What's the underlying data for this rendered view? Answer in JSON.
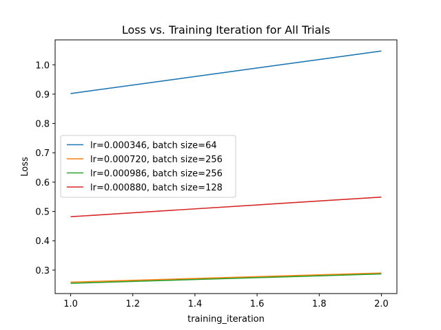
{
  "chart_data": {
    "type": "line",
    "title": "Loss vs. Training Iteration for All Trials",
    "xlabel": "training_iteration",
    "ylabel": "Loss",
    "xlim": [
      0.95,
      2.05
    ],
    "ylim": [
      0.22,
      1.085
    ],
    "xticks": [
      1.0,
      1.2,
      1.4,
      1.6,
      1.8,
      2.0
    ],
    "xtick_labels": [
      "1.0",
      "1.2",
      "1.4",
      "1.6",
      "1.8",
      "2.0"
    ],
    "yticks": [
      0.3,
      0.4,
      0.5,
      0.6,
      0.7,
      0.8,
      0.9,
      1.0
    ],
    "ytick_labels": [
      "0.3",
      "0.4",
      "0.5",
      "0.6",
      "0.7",
      "0.8",
      "0.9",
      "1.0"
    ],
    "grid": false,
    "legend_position": "center-left",
    "x": [
      1.0,
      2.0
    ],
    "series": [
      {
        "name": "lr=0.000346, batch size=64",
        "color": "#1f77b4",
        "values": [
          0.902,
          1.047
        ]
      },
      {
        "name": "lr=0.000720, batch size=256",
        "color": "#ff7f0e",
        "values": [
          0.259,
          0.29
        ]
      },
      {
        "name": "lr=0.000986, batch size=256",
        "color": "#2ca02c",
        "values": [
          0.255,
          0.287
        ]
      },
      {
        "name": "lr=0.000880, batch size=128",
        "color": "#d62728",
        "values": [
          0.482,
          0.549
        ]
      }
    ]
  }
}
